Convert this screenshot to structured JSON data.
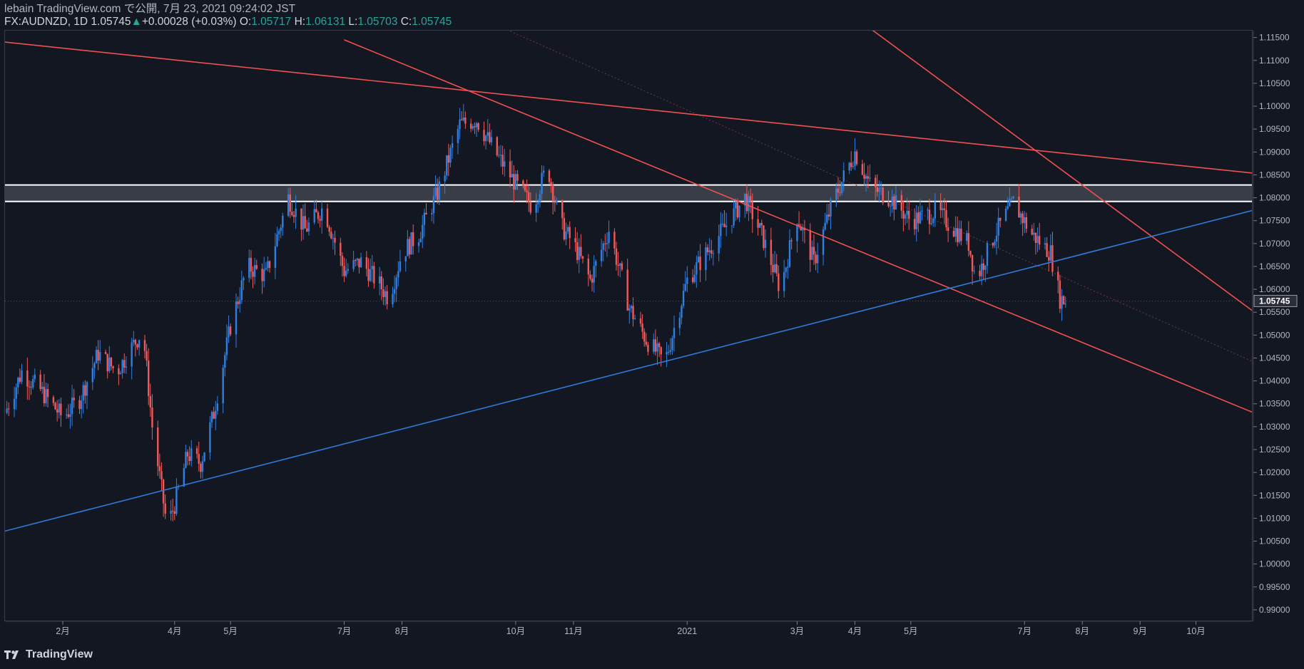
{
  "header": {
    "line1": "lebain TradingView.com で公開, 7月 23, 2021 09:24:02 JST",
    "symbol": "FX:AUDNZD, 1D 1.05745",
    "change_arrow": "▲",
    "change": "+0.00028 (+0.03%)",
    "open_label": "O:",
    "open": "1.05717",
    "high_label": "H:",
    "high": "1.06131",
    "low_label": "L:",
    "low": "1.05703",
    "close_label": "C:",
    "close": "1.05745"
  },
  "footer": {
    "brand": "TradingView"
  },
  "colors": {
    "background": "#131722",
    "up": "#2f7fe0",
    "down": "#f0595a",
    "trend_red": "#f05050",
    "trend_blue": "#2e7bd8",
    "zone": "#ffffff",
    "text": "#b2b5be",
    "green": "#26a69a"
  },
  "chart_data": {
    "type": "candlestick",
    "title": "FX:AUDNZD, 1D",
    "x_range": [
      "2020-01-01",
      "2021-10-31"
    ],
    "ylim": [
      0.9875,
      1.1165
    ],
    "ylabel": "",
    "last_price": "1.05745",
    "y_ticks": [
      "0.99000",
      "0.99500",
      "1.00000",
      "1.00500",
      "1.01000",
      "1.01500",
      "1.02000",
      "1.02500",
      "1.03000",
      "1.03500",
      "1.04000",
      "1.04500",
      "1.05000",
      "1.05500",
      "1.06000",
      "1.06500",
      "1.07000",
      "1.07500",
      "1.08000",
      "1.08500",
      "1.09000",
      "1.09500",
      "1.10000",
      "1.10500",
      "1.11000",
      "1.11500"
    ],
    "x_ticks": [
      {
        "label": "2月",
        "date": "2020-02-01"
      },
      {
        "label": "4月",
        "date": "2020-04-01"
      },
      {
        "label": "5月",
        "date": "2020-05-01"
      },
      {
        "label": "7月",
        "date": "2020-07-01"
      },
      {
        "label": "8月",
        "date": "2020-08-01"
      },
      {
        "label": "10月",
        "date": "2020-10-01"
      },
      {
        "label": "11月",
        "date": "2020-11-01"
      },
      {
        "label": "2021",
        "date": "2021-01-01"
      },
      {
        "label": "3月",
        "date": "2021-03-01"
      },
      {
        "label": "4月",
        "date": "2021-04-01"
      },
      {
        "label": "5月",
        "date": "2021-05-01"
      },
      {
        "label": "7月",
        "date": "2021-07-01"
      },
      {
        "label": "8月",
        "date": "2021-08-01"
      },
      {
        "label": "9月",
        "date": "2021-09-01"
      },
      {
        "label": "10月",
        "date": "2021-10-01"
      }
    ],
    "price_path": [
      [
        "2020-01-01",
        1.033
      ],
      [
        "2020-01-10",
        1.042
      ],
      [
        "2020-01-20",
        1.038
      ],
      [
        "2020-02-01",
        1.032
      ],
      [
        "2020-02-10",
        1.036
      ],
      [
        "2020-02-20",
        1.046
      ],
      [
        "2020-03-01",
        1.042
      ],
      [
        "2020-03-10",
        1.048
      ],
      [
        "2020-03-15",
        1.051
      ],
      [
        "2020-03-20",
        1.03
      ],
      [
        "2020-03-28",
        1.008
      ],
      [
        "2020-04-01",
        1.013
      ],
      [
        "2020-04-08",
        1.024
      ],
      [
        "2020-04-15",
        1.022
      ],
      [
        "2020-04-22",
        1.033
      ],
      [
        "2020-05-01",
        1.052
      ],
      [
        "2020-05-10",
        1.065
      ],
      [
        "2020-05-20",
        1.063
      ],
      [
        "2020-06-01",
        1.08
      ],
      [
        "2020-06-10",
        1.073
      ],
      [
        "2020-06-20",
        1.078
      ],
      [
        "2020-07-01",
        1.064
      ],
      [
        "2020-07-10",
        1.066
      ],
      [
        "2020-07-20",
        1.061
      ],
      [
        "2020-07-25",
        1.058
      ],
      [
        "2020-08-01",
        1.068
      ],
      [
        "2020-08-10",
        1.072
      ],
      [
        "2020-08-20",
        1.081
      ],
      [
        "2020-09-01",
        1.096
      ],
      [
        "2020-09-10",
        1.097
      ],
      [
        "2020-09-20",
        1.09
      ],
      [
        "2020-10-01",
        1.083
      ],
      [
        "2020-10-10",
        1.078
      ],
      [
        "2020-10-18",
        1.087
      ],
      [
        "2020-10-25",
        1.074
      ],
      [
        "2020-11-01",
        1.07
      ],
      [
        "2020-11-10",
        1.062
      ],
      [
        "2020-11-20",
        1.073
      ],
      [
        "2020-12-01",
        1.056
      ],
      [
        "2020-12-10",
        1.049
      ],
      [
        "2020-12-20",
        1.044
      ],
      [
        "2021-01-01",
        1.062
      ],
      [
        "2021-01-15",
        1.07
      ],
      [
        "2021-02-01",
        1.08
      ],
      [
        "2021-02-10",
        1.072
      ],
      [
        "2021-02-20",
        1.06
      ],
      [
        "2021-03-01",
        1.076
      ],
      [
        "2021-03-10",
        1.066
      ],
      [
        "2021-03-20",
        1.079
      ],
      [
        "2021-04-01",
        1.09
      ],
      [
        "2021-04-10",
        1.082
      ],
      [
        "2021-04-20",
        1.08
      ],
      [
        "2021-05-01",
        1.075
      ],
      [
        "2021-05-15",
        1.077
      ],
      [
        "2021-06-01",
        1.07
      ],
      [
        "2021-06-05",
        1.062
      ],
      [
        "2021-06-15",
        1.072
      ],
      [
        "2021-06-25",
        1.079
      ],
      [
        "2021-07-05",
        1.072
      ],
      [
        "2021-07-15",
        1.068
      ],
      [
        "2021-07-20",
        1.058
      ],
      [
        "2021-07-23",
        1.05745
      ]
    ],
    "annotations": [
      {
        "name": "resistance-zone",
        "type": "zone",
        "from": 1.0792,
        "to": 1.0828
      },
      {
        "name": "long-downtrend",
        "type": "line",
        "color": "red",
        "points": [
          [
            "2020-01-01",
            1.114
          ],
          [
            "2021-10-31",
            1.0854
          ]
        ]
      },
      {
        "name": "channel-top",
        "type": "line",
        "color": "red",
        "points": [
          [
            "2021-01-01",
            1.1465
          ],
          [
            "2021-10-31",
            1.0554
          ]
        ]
      },
      {
        "name": "channel-bottom",
        "type": "line",
        "color": "red",
        "points": [
          [
            "2020-07-01",
            1.1145
          ],
          [
            "2021-10-31",
            1.0332
          ]
        ]
      },
      {
        "name": "uptrend-support",
        "type": "line",
        "color": "blue",
        "points": [
          [
            "2020-01-01",
            1.0072
          ],
          [
            "2021-10-31",
            1.0772
          ]
        ]
      }
    ]
  }
}
